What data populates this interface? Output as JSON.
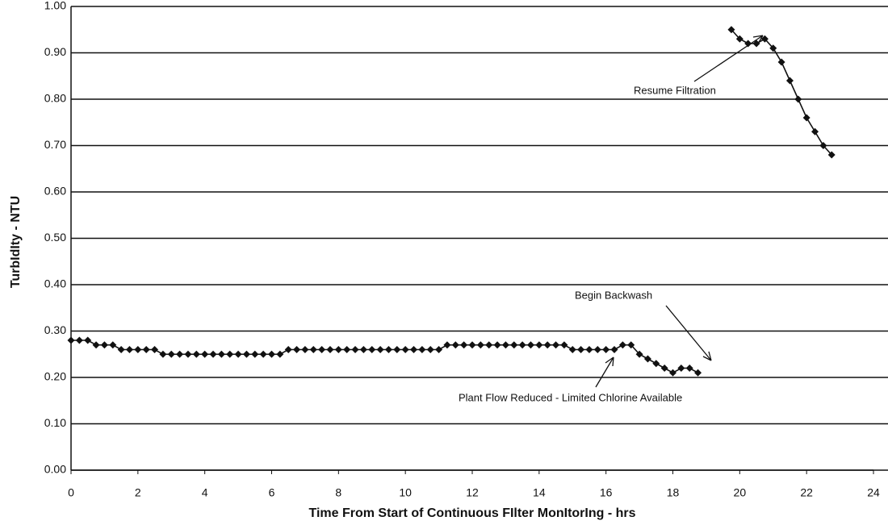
{
  "chart_data": {
    "type": "line",
    "xlabel": "Time From Start of Continuous FIlter MonItorIng - hrs",
    "ylabel": "TurbIdIty - NTU",
    "annotations": [
      "Resume Filtration",
      "Begin Backwash",
      "Plant Flow Reduced - Limited Chlorine Available"
    ],
    "x": [
      0,
      0.25,
      0.5,
      0.75,
      1,
      1.25,
      1.5,
      1.75,
      2,
      2.25,
      2.5,
      2.75,
      3,
      3.25,
      3.5,
      3.75,
      4,
      4.25,
      4.5,
      4.75,
      5,
      5.25,
      5.5,
      5.75,
      6,
      6.25,
      6.5,
      6.75,
      7,
      7.25,
      7.5,
      7.75,
      8,
      8.25,
      8.5,
      8.75,
      9,
      9.25,
      9.5,
      9.75,
      10,
      10.25,
      10.5,
      10.75,
      11,
      11.25,
      11.5,
      11.75,
      12,
      12.25,
      12.5,
      12.75,
      13,
      13.25,
      13.5,
      13.75,
      14,
      14.25,
      14.5,
      14.75,
      15,
      15.25,
      15.5,
      15.75,
      16,
      16.25,
      16.5,
      16.75,
      17,
      17.25,
      17.5,
      17.75,
      18,
      18.25,
      18.5,
      18.75,
      19.25,
      19.75,
      20,
      20.25,
      20.5,
      20.75,
      21,
      21.25,
      21.5,
      21.75,
      22,
      22.25,
      22.5,
      22.75
    ],
    "values": [
      0.28,
      0.28,
      0.28,
      0.27,
      0.27,
      0.27,
      0.26,
      0.26,
      0.26,
      0.26,
      0.26,
      0.25,
      0.25,
      0.25,
      0.25,
      0.25,
      0.25,
      0.25,
      0.25,
      0.25,
      0.25,
      0.25,
      0.25,
      0.25,
      0.25,
      0.25,
      0.26,
      0.26,
      0.26,
      0.26,
      0.26,
      0.26,
      0.26,
      0.26,
      0.26,
      0.26,
      0.26,
      0.26,
      0.26,
      0.26,
      0.26,
      0.26,
      0.26,
      0.26,
      0.26,
      0.27,
      0.27,
      0.27,
      0.27,
      0.27,
      0.27,
      0.27,
      0.27,
      0.27,
      0.27,
      0.27,
      0.27,
      0.27,
      0.27,
      0.27,
      0.26,
      0.26,
      0.26,
      0.26,
      0.26,
      0.26,
      0.27,
      0.27,
      0.25,
      0.24,
      0.23,
      0.22,
      0.21,
      0.22,
      0.22,
      0.21,
      null,
      0.95,
      0.93,
      0.92,
      0.92,
      0.93,
      0.91,
      0.88,
      0.84,
      0.8,
      0.76,
      0.73,
      0.7,
      0.68
    ],
    "color": "#111111",
    "xlim": [
      0,
      24
    ],
    "xticks": [
      0,
      2,
      4,
      6,
      8,
      10,
      12,
      14,
      16,
      18,
      20,
      22,
      24
    ],
    "ylim": [
      0,
      1
    ],
    "yticks": [
      {
        "value": 0,
        "label": "0.00"
      },
      {
        "value": 0.1,
        "label": "0.10"
      },
      {
        "value": 0.2,
        "label": "0.20"
      },
      {
        "value": 0.3,
        "label": "0.30"
      },
      {
        "value": 0.4,
        "label": "0.40"
      },
      {
        "value": 0.5,
        "label": "0.50"
      },
      {
        "value": 0.6,
        "label": "0.60"
      },
      {
        "value": 0.7,
        "label": "0.70"
      },
      {
        "value": 0.8,
        "label": "0.80"
      },
      {
        "value": 0.9,
        "label": "0.90"
      },
      {
        "value": 1,
        "label": "1.00"
      }
    ],
    "grid": true
  }
}
